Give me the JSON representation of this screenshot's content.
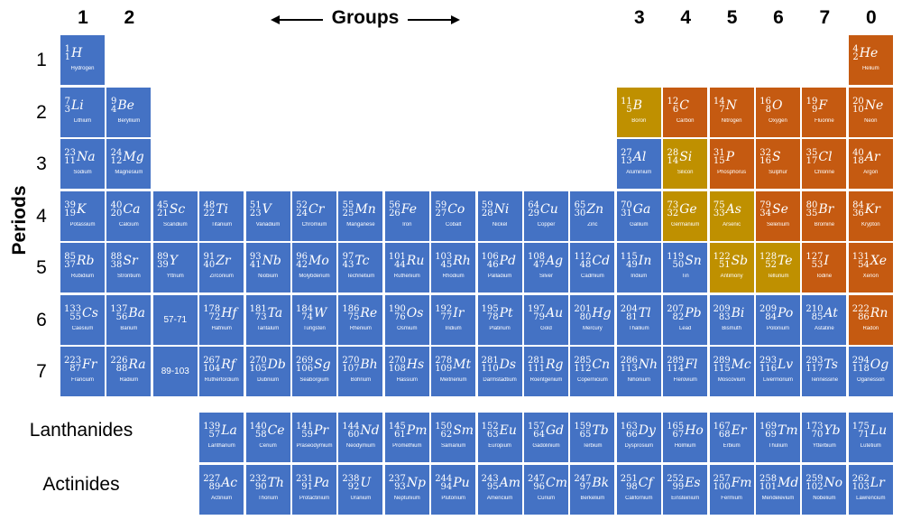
{
  "title": "Groups",
  "ylabel": "Periods",
  "colors": {
    "metal": "#4472c4",
    "nonmetal": "#c55a11",
    "metalloid": "#bf9000"
  },
  "group_labels": [
    {
      "text": "1",
      "col": 1
    },
    {
      "text": "2",
      "col": 2
    },
    {
      "text": "3",
      "col": 13
    },
    {
      "text": "4",
      "col": 14
    },
    {
      "text": "5",
      "col": 15
    },
    {
      "text": "6",
      "col": 16
    },
    {
      "text": "7",
      "col": 17
    },
    {
      "text": "0",
      "col": 18
    }
  ],
  "period_labels": [
    "1",
    "2",
    "3",
    "4",
    "5",
    "6",
    "7"
  ],
  "series_labels": {
    "lanthanides": "Lanthanides",
    "actinides": "Actinides"
  },
  "ranges": [
    {
      "text": "57-71",
      "row": 6,
      "col": 3
    },
    {
      "text": "89-103",
      "row": 7,
      "col": 3
    }
  ],
  "elements": [
    {
      "s": "H",
      "n": "Hydrogen",
      "z": 1,
      "m": 1,
      "row": 1,
      "col": 1,
      "t": "b"
    },
    {
      "s": "He",
      "n": "Helium",
      "z": 2,
      "m": 4,
      "row": 1,
      "col": 18,
      "t": "o"
    },
    {
      "s": "Li",
      "n": "Lithium",
      "z": 3,
      "m": 7,
      "row": 2,
      "col": 1,
      "t": "b"
    },
    {
      "s": "Be",
      "n": "Beryllium",
      "z": 4,
      "m": 9,
      "row": 2,
      "col": 2,
      "t": "b"
    },
    {
      "s": "B",
      "n": "Boron",
      "z": 5,
      "m": 11,
      "row": 2,
      "col": 13,
      "t": "g"
    },
    {
      "s": "C",
      "n": "Carbon",
      "z": 6,
      "m": 12,
      "row": 2,
      "col": 14,
      "t": "o"
    },
    {
      "s": "N",
      "n": "Nitrogen",
      "z": 7,
      "m": 14,
      "row": 2,
      "col": 15,
      "t": "o"
    },
    {
      "s": "O",
      "n": "Oxygen",
      "z": 8,
      "m": 16,
      "row": 2,
      "col": 16,
      "t": "o"
    },
    {
      "s": "F",
      "n": "Fluorine",
      "z": 9,
      "m": 19,
      "row": 2,
      "col": 17,
      "t": "o"
    },
    {
      "s": "Ne",
      "n": "Neon",
      "z": 10,
      "m": 20,
      "row": 2,
      "col": 18,
      "t": "o"
    },
    {
      "s": "Na",
      "n": "Sodium",
      "z": 11,
      "m": 23,
      "row": 3,
      "col": 1,
      "t": "b"
    },
    {
      "s": "Mg",
      "n": "Magnesium",
      "z": 12,
      "m": 24,
      "row": 3,
      "col": 2,
      "t": "b"
    },
    {
      "s": "Al",
      "n": "Aluminium",
      "z": 13,
      "m": 27,
      "row": 3,
      "col": 13,
      "t": "b"
    },
    {
      "s": "Si",
      "n": "Silicon",
      "z": 14,
      "m": 28,
      "row": 3,
      "col": 14,
      "t": "g"
    },
    {
      "s": "P",
      "n": "Phosphorus",
      "z": 15,
      "m": 31,
      "row": 3,
      "col": 15,
      "t": "o"
    },
    {
      "s": "S",
      "n": "Sulphur",
      "z": 16,
      "m": 32,
      "row": 3,
      "col": 16,
      "t": "o"
    },
    {
      "s": "Cl",
      "n": "Chlorine",
      "z": 17,
      "m": 35,
      "row": 3,
      "col": 17,
      "t": "o"
    },
    {
      "s": "Ar",
      "n": "Argon",
      "z": 18,
      "m": 40,
      "row": 3,
      "col": 18,
      "t": "o"
    },
    {
      "s": "K",
      "n": "Potassium",
      "z": 19,
      "m": 39,
      "row": 4,
      "col": 1,
      "t": "b"
    },
    {
      "s": "Ca",
      "n": "Calcium",
      "z": 20,
      "m": 40,
      "row": 4,
      "col": 2,
      "t": "b"
    },
    {
      "s": "Sc",
      "n": "Scandium",
      "z": 21,
      "m": 45,
      "row": 4,
      "col": 3,
      "t": "b"
    },
    {
      "s": "Ti",
      "n": "Titanium",
      "z": 22,
      "m": 48,
      "row": 4,
      "col": 4,
      "t": "b"
    },
    {
      "s": "V",
      "n": "Vanadium",
      "z": 23,
      "m": 51,
      "row": 4,
      "col": 5,
      "t": "b"
    },
    {
      "s": "Cr",
      "n": "Chromium",
      "z": 24,
      "m": 52,
      "row": 4,
      "col": 6,
      "t": "b"
    },
    {
      "s": "Mn",
      "n": "Manganese",
      "z": 25,
      "m": 55,
      "row": 4,
      "col": 7,
      "t": "b"
    },
    {
      "s": "Fe",
      "n": "Iron",
      "z": 26,
      "m": 56,
      "row": 4,
      "col": 8,
      "t": "b"
    },
    {
      "s": "Co",
      "n": "Cobalt",
      "z": 27,
      "m": 59,
      "row": 4,
      "col": 9,
      "t": "b"
    },
    {
      "s": "Ni",
      "n": "Nickel",
      "z": 28,
      "m": 59,
      "row": 4,
      "col": 10,
      "t": "b"
    },
    {
      "s": "Cu",
      "n": "Copper",
      "z": 29,
      "m": 64,
      "row": 4,
      "col": 11,
      "t": "b"
    },
    {
      "s": "Zn",
      "n": "Zinc",
      "z": 30,
      "m": 65,
      "row": 4,
      "col": 12,
      "t": "b"
    },
    {
      "s": "Ga",
      "n": "Gallium",
      "z": 31,
      "m": 70,
      "row": 4,
      "col": 13,
      "t": "b"
    },
    {
      "s": "Ge",
      "n": "Germanium",
      "z": 32,
      "m": 73,
      "row": 4,
      "col": 14,
      "t": "g"
    },
    {
      "s": "As",
      "n": "Arsenic",
      "z": 33,
      "m": 75,
      "row": 4,
      "col": 15,
      "t": "g"
    },
    {
      "s": "Se",
      "n": "Selenium",
      "z": 34,
      "m": 79,
      "row": 4,
      "col": 16,
      "t": "o"
    },
    {
      "s": "Br",
      "n": "Bromine",
      "z": 35,
      "m": 80,
      "row": 4,
      "col": 17,
      "t": "o"
    },
    {
      "s": "Kr",
      "n": "Krypton",
      "z": 36,
      "m": 84,
      "row": 4,
      "col": 18,
      "t": "o"
    },
    {
      "s": "Rb",
      "n": "Rubidium",
      "z": 37,
      "m": 85,
      "row": 5,
      "col": 1,
      "t": "b"
    },
    {
      "s": "Sr",
      "n": "Strontium",
      "z": 38,
      "m": 88,
      "row": 5,
      "col": 2,
      "t": "b"
    },
    {
      "s": "Y",
      "n": "Yttrium",
      "z": 39,
      "m": 89,
      "row": 5,
      "col": 3,
      "t": "b"
    },
    {
      "s": "Zr",
      "n": "Zirconium",
      "z": 40,
      "m": 91,
      "row": 5,
      "col": 4,
      "t": "b"
    },
    {
      "s": "Nb",
      "n": "Niobium",
      "z": 41,
      "m": 93,
      "row": 5,
      "col": 5,
      "t": "b"
    },
    {
      "s": "Mo",
      "n": "Molybdenum",
      "z": 42,
      "m": 96,
      "row": 5,
      "col": 6,
      "t": "b"
    },
    {
      "s": "Tc",
      "n": "Technetium",
      "z": 43,
      "m": 97,
      "row": 5,
      "col": 7,
      "t": "b"
    },
    {
      "s": "Ru",
      "n": "Ruthenium",
      "z": 44,
      "m": 101,
      "row": 5,
      "col": 8,
      "t": "b"
    },
    {
      "s": "Rh",
      "n": "Rhodium",
      "z": 45,
      "m": 103,
      "row": 5,
      "col": 9,
      "t": "b"
    },
    {
      "s": "Pd",
      "n": "Palladium",
      "z": 46,
      "m": 106,
      "row": 5,
      "col": 10,
      "t": "b"
    },
    {
      "s": "Ag",
      "n": "Silver",
      "z": 47,
      "m": 108,
      "row": 5,
      "col": 11,
      "t": "b"
    },
    {
      "s": "Cd",
      "n": "Cadmium",
      "z": 48,
      "m": 112,
      "row": 5,
      "col": 12,
      "t": "b"
    },
    {
      "s": "In",
      "n": "Indium",
      "z": 49,
      "m": 115,
      "row": 5,
      "col": 13,
      "t": "b"
    },
    {
      "s": "Sn",
      "n": "Tin",
      "z": 50,
      "m": 119,
      "row": 5,
      "col": 14,
      "t": "b"
    },
    {
      "s": "Sb",
      "n": "Antimony",
      "z": 51,
      "m": 122,
      "row": 5,
      "col": 15,
      "t": "g"
    },
    {
      "s": "Te",
      "n": "Tellurium",
      "z": 52,
      "m": 128,
      "row": 5,
      "col": 16,
      "t": "g"
    },
    {
      "s": "I",
      "n": "Iodine",
      "z": 53,
      "m": 127,
      "row": 5,
      "col": 17,
      "t": "o"
    },
    {
      "s": "Xe",
      "n": "Xenon",
      "z": 54,
      "m": 131,
      "row": 5,
      "col": 18,
      "t": "o"
    },
    {
      "s": "Cs",
      "n": "Caesium",
      "z": 55,
      "m": 133,
      "row": 6,
      "col": 1,
      "t": "b"
    },
    {
      "s": "Ba",
      "n": "Barium",
      "z": 56,
      "m": 137,
      "row": 6,
      "col": 2,
      "t": "b"
    },
    {
      "s": "Hf",
      "n": "Hafnium",
      "z": 72,
      "m": 178,
      "row": 6,
      "col": 4,
      "t": "b"
    },
    {
      "s": "Ta",
      "n": "Tantalum",
      "z": 73,
      "m": 181,
      "row": 6,
      "col": 5,
      "t": "b"
    },
    {
      "s": "W",
      "n": "Tungsten",
      "z": 74,
      "m": 184,
      "row": 6,
      "col": 6,
      "t": "b"
    },
    {
      "s": "Re",
      "n": "Rhenium",
      "z": 75,
      "m": 186,
      "row": 6,
      "col": 7,
      "t": "b"
    },
    {
      "s": "Os",
      "n": "Osmium",
      "z": 76,
      "m": 190,
      "row": 6,
      "col": 8,
      "t": "b"
    },
    {
      "s": "Ir",
      "n": "Iridium",
      "z": 77,
      "m": 192,
      "row": 6,
      "col": 9,
      "t": "b"
    },
    {
      "s": "Pt",
      "n": "Platinum",
      "z": 78,
      "m": 195,
      "row": 6,
      "col": 10,
      "t": "b"
    },
    {
      "s": "Au",
      "n": "Gold",
      "z": 79,
      "m": 197,
      "row": 6,
      "col": 11,
      "t": "b"
    },
    {
      "s": "Hg",
      "n": "Mercury",
      "z": 80,
      "m": 201,
      "row": 6,
      "col": 12,
      "t": "b"
    },
    {
      "s": "Tl",
      "n": "Thallium",
      "z": 81,
      "m": 204,
      "row": 6,
      "col": 13,
      "t": "b"
    },
    {
      "s": "Pb",
      "n": "Lead",
      "z": 82,
      "m": 207,
      "row": 6,
      "col": 14,
      "t": "b"
    },
    {
      "s": "Bi",
      "n": "Bismuth",
      "z": 83,
      "m": 209,
      "row": 6,
      "col": 15,
      "t": "b"
    },
    {
      "s": "Po",
      "n": "Polonium",
      "z": 84,
      "m": 209,
      "row": 6,
      "col": 16,
      "t": "b"
    },
    {
      "s": "At",
      "n": "Astatine",
      "z": 85,
      "m": 210,
      "row": 6,
      "col": 17,
      "t": "b"
    },
    {
      "s": "Rn",
      "n": "Radon",
      "z": 86,
      "m": 222,
      "row": 6,
      "col": 18,
      "t": "o"
    },
    {
      "s": "Fr",
      "n": "Francium",
      "z": 87,
      "m": 223,
      "row": 7,
      "col": 1,
      "t": "b"
    },
    {
      "s": "Ra",
      "n": "Radium",
      "z": 88,
      "m": 226,
      "row": 7,
      "col": 2,
      "t": "b"
    },
    {
      "s": "Rf",
      "n": "Rutherfordium",
      "z": 104,
      "m": 267,
      "row": 7,
      "col": 4,
      "t": "b"
    },
    {
      "s": "Db",
      "n": "Dubnium",
      "z": 105,
      "m": 270,
      "row": 7,
      "col": 5,
      "t": "b"
    },
    {
      "s": "Sg",
      "n": "Seaborgium",
      "z": 106,
      "m": 269,
      "row": 7,
      "col": 6,
      "t": "b"
    },
    {
      "s": "Bh",
      "n": "Bohrium",
      "z": 107,
      "m": 270,
      "row": 7,
      "col": 7,
      "t": "b"
    },
    {
      "s": "Hs",
      "n": "Hassium",
      "z": 108,
      "m": 270,
      "row": 7,
      "col": 8,
      "t": "b"
    },
    {
      "s": "Mt",
      "n": "Meitnerium",
      "z": 109,
      "m": 278,
      "row": 7,
      "col": 9,
      "t": "b"
    },
    {
      "s": "Ds",
      "n": "Darmstadtium",
      "z": 110,
      "m": 281,
      "row": 7,
      "col": 10,
      "t": "b"
    },
    {
      "s": "Rg",
      "n": "Roentgenium",
      "z": 111,
      "m": 281,
      "row": 7,
      "col": 11,
      "t": "b"
    },
    {
      "s": "Cn",
      "n": "Copernicium",
      "z": 112,
      "m": 285,
      "row": 7,
      "col": 12,
      "t": "b"
    },
    {
      "s": "Nh",
      "n": "Nihonium",
      "z": 113,
      "m": 286,
      "row": 7,
      "col": 13,
      "t": "b"
    },
    {
      "s": "Fl",
      "n": "Flerovium",
      "z": 114,
      "m": 289,
      "row": 7,
      "col": 14,
      "t": "b"
    },
    {
      "s": "Mc",
      "n": "Moscovium",
      "z": 115,
      "m": 289,
      "row": 7,
      "col": 15,
      "t": "b"
    },
    {
      "s": "Lv",
      "n": "Livermorium",
      "z": 116,
      "m": 293,
      "row": 7,
      "col": 16,
      "t": "b"
    },
    {
      "s": "Ts",
      "n": "Tennessine",
      "z": 117,
      "m": 293,
      "row": 7,
      "col": 17,
      "t": "b"
    },
    {
      "s": "Og",
      "n": "Oganesson",
      "z": 118,
      "m": 294,
      "row": 7,
      "col": 18,
      "t": "b"
    },
    {
      "s": "La",
      "n": "Lanthanum",
      "z": 57,
      "m": 139,
      "row": 8,
      "col": 4,
      "t": "b"
    },
    {
      "s": "Ce",
      "n": "Cerium",
      "z": 58,
      "m": 140,
      "row": 8,
      "col": 5,
      "t": "b"
    },
    {
      "s": "Pr",
      "n": "Praseodymium",
      "z": 59,
      "m": 141,
      "row": 8,
      "col": 6,
      "t": "b"
    },
    {
      "s": "Nd",
      "n": "Neodymium",
      "z": 60,
      "m": 144,
      "row": 8,
      "col": 7,
      "t": "b"
    },
    {
      "s": "Pm",
      "n": "Promethium",
      "z": 61,
      "m": 145,
      "row": 8,
      "col": 8,
      "t": "b"
    },
    {
      "s": "Sm",
      "n": "Samarium",
      "z": 62,
      "m": 150,
      "row": 8,
      "col": 9,
      "t": "b"
    },
    {
      "s": "Eu",
      "n": "Europium",
      "z": 63,
      "m": 152,
      "row": 8,
      "col": 10,
      "t": "b"
    },
    {
      "s": "Gd",
      "n": "Gadolinium",
      "z": 64,
      "m": 157,
      "row": 8,
      "col": 11,
      "t": "b"
    },
    {
      "s": "Tb",
      "n": "Terbium",
      "z": 65,
      "m": 159,
      "row": 8,
      "col": 12,
      "t": "b"
    },
    {
      "s": "Dy",
      "n": "Dysprosium",
      "z": 66,
      "m": 163,
      "row": 8,
      "col": 13,
      "t": "b"
    },
    {
      "s": "Ho",
      "n": "Holmium",
      "z": 67,
      "m": 165,
      "row": 8,
      "col": 14,
      "t": "b"
    },
    {
      "s": "Er",
      "n": "Erbium",
      "z": 68,
      "m": 167,
      "row": 8,
      "col": 15,
      "t": "b"
    },
    {
      "s": "Tm",
      "n": "Thulium",
      "z": 69,
      "m": 169,
      "row": 8,
      "col": 16,
      "t": "b"
    },
    {
      "s": "Yb",
      "n": "Ytterbium",
      "z": 70,
      "m": 173,
      "row": 8,
      "col": 17,
      "t": "b"
    },
    {
      "s": "Lu",
      "n": "Lutetium",
      "z": 71,
      "m": 175,
      "row": 8,
      "col": 18,
      "t": "b"
    },
    {
      "s": "Ac",
      "n": "Actinium",
      "z": 89,
      "m": 227,
      "row": 9,
      "col": 4,
      "t": "b"
    },
    {
      "s": "Th",
      "n": "Thorium",
      "z": 90,
      "m": 232,
      "row": 9,
      "col": 5,
      "t": "b"
    },
    {
      "s": "Pa",
      "n": "Protactinium",
      "z": 91,
      "m": 231,
      "row": 9,
      "col": 6,
      "t": "b"
    },
    {
      "s": "U",
      "n": "Uranium",
      "z": 92,
      "m": 238,
      "row": 9,
      "col": 7,
      "t": "b"
    },
    {
      "s": "Np",
      "n": "Neptunium",
      "z": 93,
      "m": 237,
      "row": 9,
      "col": 8,
      "t": "b"
    },
    {
      "s": "Pu",
      "n": "Plutonium",
      "z": 94,
      "m": 244,
      "row": 9,
      "col": 9,
      "t": "b"
    },
    {
      "s": "Am",
      "n": "Americium",
      "z": 95,
      "m": 243,
      "row": 9,
      "col": 10,
      "t": "b"
    },
    {
      "s": "Cm",
      "n": "Curium",
      "z": 96,
      "m": 247,
      "row": 9,
      "col": 11,
      "t": "b"
    },
    {
      "s": "Bk",
      "n": "Berkelium",
      "z": 97,
      "m": 247,
      "row": 9,
      "col": 12,
      "t": "b"
    },
    {
      "s": "Cf",
      "n": "Californium",
      "z": 98,
      "m": 251,
      "row": 9,
      "col": 13,
      "t": "b"
    },
    {
      "s": "Es",
      "n": "Einsteinium",
      "z": 99,
      "m": 252,
      "row": 9,
      "col": 14,
      "t": "b"
    },
    {
      "s": "Fm",
      "n": "Fermium",
      "z": 100,
      "m": 257,
      "row": 9,
      "col": 15,
      "t": "b"
    },
    {
      "s": "Md",
      "n": "Mendelevium",
      "z": 101,
      "m": 258,
      "row": 9,
      "col": 16,
      "t": "b"
    },
    {
      "s": "No",
      "n": "Nobelium",
      "z": 102,
      "m": 259,
      "row": 9,
      "col": 17,
      "t": "b"
    },
    {
      "s": "Lr",
      "n": "Lawrencium",
      "z": 103,
      "m": 262,
      "row": 9,
      "col": 18,
      "t": "b"
    }
  ]
}
